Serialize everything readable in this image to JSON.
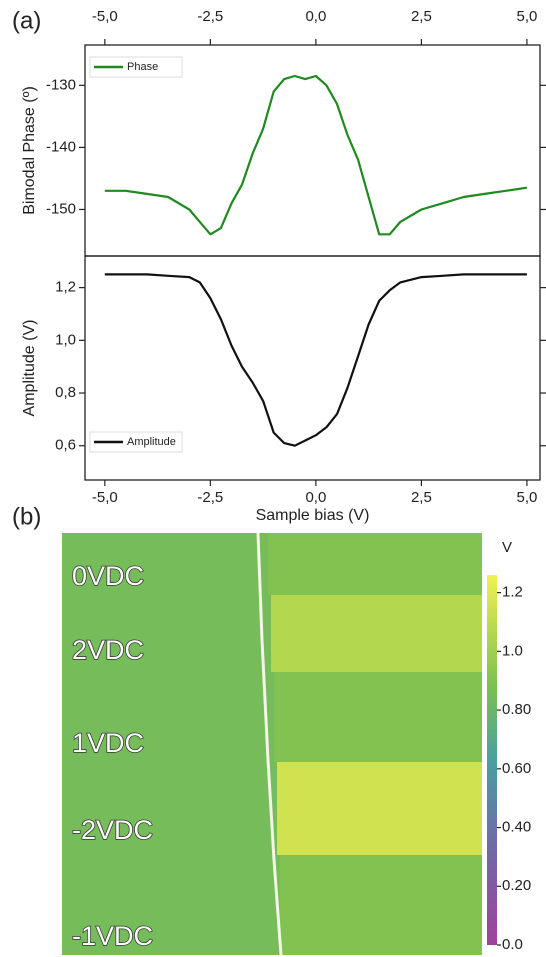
{
  "chart_data": [
    {
      "type": "line",
      "panel": "(a)",
      "ylabel": "Bimodal Phase (º)",
      "legend": "upper left",
      "x": [
        -5,
        -4.5,
        -4,
        -3.5,
        -3,
        -2.75,
        -2.5,
        -2.25,
        -2,
        -1.75,
        -1.5,
        -1.25,
        -1,
        -0.75,
        -0.5,
        -0.25,
        0,
        0.25,
        0.5,
        0.75,
        1,
        1.25,
        1.5,
        1.75,
        2,
        2.5,
        3,
        3.5,
        4,
        4.5,
        5
      ],
      "series": [
        {
          "name": "Phase",
          "color": "#1f8a1f",
          "values": [
            -147,
            -147,
            -147.5,
            -148,
            -150,
            -152,
            -154,
            -153,
            -149,
            -146,
            -141,
            -137,
            -131,
            -129,
            -128.5,
            -129,
            -128.5,
            -130,
            -133,
            -138,
            -142,
            -148,
            -154,
            -154,
            -152,
            -150,
            -149,
            -148,
            -147.5,
            -147,
            -146.5
          ]
        }
      ],
      "xlim": [
        -5.47,
        5.31
      ],
      "ylim": [
        -157.5,
        -123.5
      ],
      "xticks": [
        {
          "value": -5,
          "label": "-5,0"
        },
        {
          "value": -2.5,
          "label": "-2,5"
        },
        {
          "value": 0,
          "label": "0,0"
        },
        {
          "value": 2.5,
          "label": "2,5"
        },
        {
          "value": 5,
          "label": "5,0"
        }
      ],
      "yticks": [
        -150,
        -140,
        -130
      ]
    },
    {
      "type": "line",
      "xlabel": "Sample bias (V)",
      "ylabel": "Amplitude (V)",
      "legend": "lower left",
      "x": [
        -5,
        -4.5,
        -4,
        -3.5,
        -3,
        -2.75,
        -2.5,
        -2.25,
        -2,
        -1.75,
        -1.5,
        -1.25,
        -1,
        -0.75,
        -0.5,
        -0.25,
        0,
        0.25,
        0.5,
        0.75,
        1,
        1.25,
        1.5,
        1.75,
        2,
        2.5,
        3,
        3.5,
        4,
        4.5,
        5
      ],
      "series": [
        {
          "name": "Amplitude",
          "color": "#111111",
          "values": [
            1.25,
            1.25,
            1.25,
            1.245,
            1.24,
            1.22,
            1.16,
            1.08,
            0.98,
            0.9,
            0.84,
            0.77,
            0.65,
            0.61,
            0.6,
            0.62,
            0.64,
            0.67,
            0.72,
            0.82,
            0.94,
            1.06,
            1.15,
            1.19,
            1.22,
            1.24,
            1.245,
            1.25,
            1.25,
            1.25,
            1.25
          ]
        }
      ],
      "xlim": [
        -5.47,
        5.31
      ],
      "ylim": [
        0.47,
        1.32
      ],
      "xticks": [
        {
          "value": -5,
          "label": "-5,0"
        },
        {
          "value": -2.5,
          "label": "-2,5"
        },
        {
          "value": 0,
          "label": "0,0"
        },
        {
          "value": 2.5,
          "label": "2,5"
        },
        {
          "value": 5,
          "label": "5,0"
        }
      ],
      "yticks": [
        {
          "value": 0.6,
          "label": "0,6"
        },
        {
          "value": 0.8,
          "label": "0,8"
        },
        {
          "value": 1.0,
          "label": "1,0"
        },
        {
          "value": 1.2,
          "label": "1,2"
        }
      ]
    },
    {
      "type": "map",
      "panel": "(b)",
      "colorbar_label": "V",
      "categories": [
        "0VDC",
        "2VDC",
        "1VDC",
        "-2VDC",
        "-1VDC"
      ],
      "values": [
        0.9,
        1.06,
        0.9,
        1.15,
        0.9
      ],
      "background": 0.85,
      "clim": [
        0,
        1.26
      ],
      "cticks": [
        {
          "value": 0,
          "label": "0.0"
        },
        {
          "value": 0.2,
          "label": "0.20"
        },
        {
          "value": 0.4,
          "label": "0.40"
        },
        {
          "value": 0.6,
          "label": "0.60"
        },
        {
          "value": 0.8,
          "label": "0.80"
        },
        {
          "value": 1.0,
          "label": "1.0"
        },
        {
          "value": 1.2,
          "label": "1.2"
        }
      ]
    }
  ]
}
